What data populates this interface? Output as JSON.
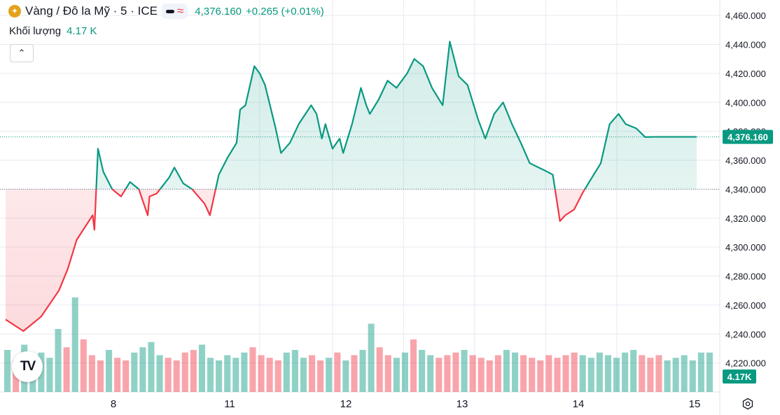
{
  "header": {
    "symbol_title": "Vàng / Đô la Mỹ · 5 · ICE",
    "coin_icon": "gold-coin-icon",
    "last_price": "4,376.160",
    "change": "+0.265 (+0.01%)",
    "volume_label": "Khối lượng",
    "volume_value": "4.17 K"
  },
  "colors": {
    "up": "#089981",
    "down": "#f23645",
    "grid": "#e0e3eb",
    "text": "#131722"
  },
  "chart_data": {
    "type": "line",
    "title": "Vàng / Đô la Mỹ · 5 · ICE",
    "xlabel": "",
    "ylabel": "",
    "ylim": [
      4200,
      4462
    ],
    "grid": true,
    "x_tick_labels": [
      "8",
      "11",
      "12",
      "13",
      "14",
      "15"
    ],
    "y_tick_labels": [
      "4,460.000",
      "4,440.000",
      "4,420.000",
      "4,400.000",
      "4,380.000",
      "4,360.000",
      "4,340.000",
      "4,320.000",
      "4,300.000",
      "4,280.000",
      "4,260.000",
      "4,240.000",
      "4,220.000"
    ],
    "y_tick_values": [
      4460,
      4440,
      4420,
      4400,
      4380,
      4360,
      4340,
      4320,
      4300,
      4280,
      4260,
      4240,
      4220
    ],
    "baseline": 4340,
    "last_value": 4376.16,
    "last_value_label": "4,376.160",
    "volume_last_label": "4.17K",
    "x": [
      0,
      0.5,
      1.0,
      1.5,
      1.75,
      2.0,
      2.45,
      2.5,
      2.6,
      2.75,
      3.0,
      3.25,
      3.5,
      3.75,
      4.0,
      4.05,
      4.25,
      4.6,
      4.75,
      5.0,
      5.25,
      5.6,
      5.75,
      6.0,
      6.25,
      6.5,
      6.6,
      6.75,
      7.0,
      7.15,
      7.3,
      7.6,
      7.75,
      8.0,
      8.25,
      8.6,
      8.75,
      8.9,
      9.0,
      9.2,
      9.4,
      9.5,
      9.75,
      10.0,
      10.15,
      10.25,
      10.5,
      10.75,
      11.0,
      11.3,
      11.5,
      11.75,
      12.0,
      12.3,
      12.5,
      12.75,
      13.0,
      13.3,
      13.5,
      13.75,
      14.0,
      14.25,
      14.5,
      14.75,
      15.0,
      15.25,
      15.4,
      15.6,
      15.75,
      16.0,
      16.25,
      16.5,
      16.75,
      17.0,
      17.25,
      17.45,
      17.75,
      18.0,
      18.25,
      18.6,
      18.75,
      19.0,
      19.25,
      19.45
    ],
    "values": [
      4250,
      4242,
      4252,
      4270,
      4285,
      4305,
      4322,
      4312,
      4368,
      4352,
      4340,
      4335,
      4345,
      4340,
      4322,
      4335,
      4337,
      4348,
      4355,
      4344,
      4340,
      4330,
      4322,
      4350,
      4362,
      4372,
      4395,
      4398,
      4425,
      4420,
      4412,
      4382,
      4365,
      4372,
      4385,
      4398,
      4392,
      4375,
      4385,
      4368,
      4375,
      4365,
      4385,
      4410,
      4398,
      4392,
      4402,
      4415,
      4410,
      4420,
      4430,
      4425,
      4410,
      4398,
      4442,
      4418,
      4412,
      4388,
      4375,
      4392,
      4400,
      4385,
      4372,
      4358,
      4355,
      4352,
      4350,
      4318,
      4322,
      4326,
      4338,
      4348,
      4358,
      4385,
      4392,
      4385,
      4382,
      4376,
      4376.16,
      4376.16,
      4376.16,
      4376.16,
      4376.16,
      4376.16
    ],
    "volume": [
      16,
      12,
      18,
      14,
      15,
      13,
      24,
      17,
      36,
      20,
      14,
      12,
      16,
      13,
      12,
      15,
      17,
      19,
      14,
      13,
      12,
      15,
      16,
      18,
      13,
      12,
      14,
      13,
      15,
      17,
      14,
      13,
      12,
      15,
      16,
      13,
      14,
      12,
      13,
      15,
      12,
      14,
      16,
      26,
      17,
      14,
      13,
      15,
      20,
      16,
      14,
      13,
      14,
      15,
      16,
      14,
      13,
      12,
      14,
      16,
      15,
      14,
      13,
      12,
      14,
      13,
      14,
      15,
      14,
      13,
      15,
      14,
      13,
      15,
      16,
      14,
      13,
      14,
      12,
      13,
      14,
      12,
      15,
      15
    ]
  }
}
